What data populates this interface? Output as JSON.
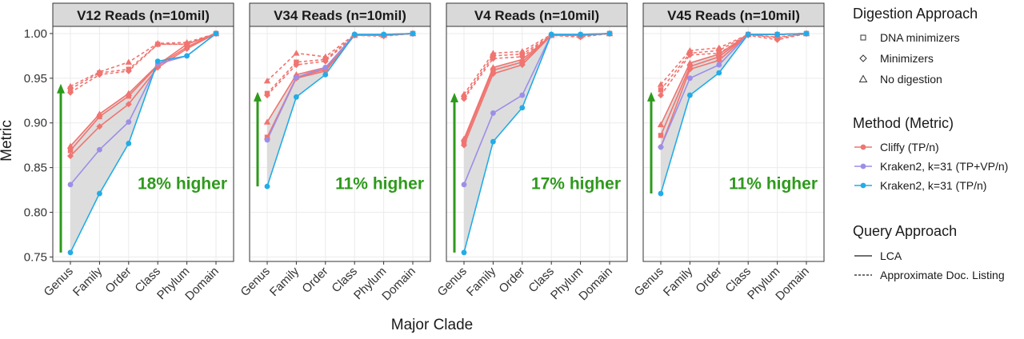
{
  "chart_data": {
    "type": "line",
    "ylabel": "Metric",
    "xlabel": "Major Clade",
    "categories": [
      "Genus",
      "Family",
      "Order",
      "Class",
      "Phylum",
      "Domain"
    ],
    "ylim": [
      0.745,
      1.008
    ],
    "yticks": [
      0.75,
      0.8,
      0.85,
      0.9,
      0.95,
      1.0
    ],
    "ytick_labels": [
      "0.75",
      "0.80",
      "0.85",
      "0.90",
      "0.95",
      "1.00"
    ],
    "colors": {
      "cliffy": "#f07470",
      "kraken_tpvp": "#9c8ee8",
      "kraken_tp": "#22ace8",
      "arrow": "#2e9a1c",
      "shade": "#d9d9d9",
      "panel_border": "#333333",
      "strip_bg": "#d9d9d9",
      "grid": "#ebebeb"
    },
    "panels": [
      {
        "title": "V12 Reads (n=10mil)",
        "annotation": "18% higher",
        "arrow": {
          "from": 0.755,
          "to": 0.942
        },
        "series": [
          {
            "method": "cliffy",
            "query": "dashed",
            "shape": "triangle",
            "values": [
              0.941,
              0.957,
              0.968,
              0.989,
              0.99,
              1.0
            ]
          },
          {
            "method": "cliffy",
            "query": "dashed",
            "shape": "diamond",
            "values": [
              0.934,
              0.954,
              0.958,
              0.988,
              0.988,
              1.0
            ]
          },
          {
            "method": "cliffy",
            "query": "dashed",
            "shape": "square",
            "values": [
              0.938,
              0.956,
              0.96,
              0.988,
              0.988,
              1.0
            ]
          },
          {
            "method": "cliffy",
            "query": "solid",
            "shape": "triangle",
            "values": [
              0.874,
              0.91,
              0.933,
              0.965,
              0.988,
              1.0
            ]
          },
          {
            "method": "cliffy",
            "query": "solid",
            "shape": "square",
            "values": [
              0.869,
              0.907,
              0.93,
              0.964,
              0.985,
              1.0
            ]
          },
          {
            "method": "cliffy",
            "query": "solid",
            "shape": "diamond",
            "values": [
              0.863,
              0.896,
              0.921,
              0.962,
              0.983,
              1.0
            ]
          },
          {
            "method": "kraken_tpvp",
            "query": "solid",
            "shape": "circle",
            "values": [
              0.831,
              0.87,
              0.901,
              0.966,
              0.975,
              1.0
            ]
          },
          {
            "method": "kraken_tp",
            "query": "solid",
            "shape": "circle",
            "values": [
              0.755,
              0.821,
              0.877,
              0.969,
              0.975,
              1.0
            ]
          }
        ]
      },
      {
        "title": "V34 Reads (n=10mil)",
        "annotation": "11% higher",
        "arrow": {
          "from": 0.829,
          "to": 0.933
        },
        "series": [
          {
            "method": "cliffy",
            "query": "dashed",
            "shape": "triangle",
            "values": [
              0.947,
              0.978,
              0.974,
              0.999,
              0.998,
              1.0
            ]
          },
          {
            "method": "cliffy",
            "query": "dashed",
            "shape": "diamond",
            "values": [
              0.931,
              0.965,
              0.969,
              0.998,
              0.997,
              1.0
            ]
          },
          {
            "method": "cliffy",
            "query": "dashed",
            "shape": "square",
            "values": [
              0.933,
              0.968,
              0.971,
              0.998,
              0.998,
              1.0
            ]
          },
          {
            "method": "cliffy",
            "query": "solid",
            "shape": "triangle",
            "values": [
              0.901,
              0.954,
              0.962,
              0.998,
              0.998,
              1.0
            ]
          },
          {
            "method": "cliffy",
            "query": "solid",
            "shape": "square",
            "values": [
              0.884,
              0.951,
              0.96,
              0.998,
              0.998,
              1.0
            ]
          },
          {
            "method": "cliffy",
            "query": "solid",
            "shape": "diamond",
            "values": [
              0.882,
              0.95,
              0.958,
              0.998,
              0.998,
              1.0
            ]
          },
          {
            "method": "kraken_tpvp",
            "query": "solid",
            "shape": "circle",
            "values": [
              0.881,
              0.951,
              0.962,
              0.999,
              0.999,
              1.0
            ]
          },
          {
            "method": "kraken_tp",
            "query": "solid",
            "shape": "circle",
            "values": [
              0.829,
              0.929,
              0.954,
              0.999,
              0.999,
              1.0
            ]
          }
        ]
      },
      {
        "title": "V4 Reads (n=10mil)",
        "annotation": "17% higher",
        "arrow": {
          "from": 0.755,
          "to": 0.932
        },
        "series": [
          {
            "method": "cliffy",
            "query": "dashed",
            "shape": "triangle",
            "values": [
              0.932,
              0.978,
              0.98,
              0.999,
              0.998,
              1.0
            ]
          },
          {
            "method": "cliffy",
            "query": "dashed",
            "shape": "diamond",
            "values": [
              0.927,
              0.972,
              0.974,
              0.998,
              0.996,
              1.0
            ]
          },
          {
            "method": "cliffy",
            "query": "dashed",
            "shape": "square",
            "values": [
              0.929,
              0.975,
              0.977,
              0.998,
              0.997,
              1.0
            ]
          },
          {
            "method": "cliffy",
            "query": "solid",
            "shape": "triangle",
            "values": [
              0.882,
              0.962,
              0.971,
              0.998,
              0.998,
              1.0
            ]
          },
          {
            "method": "cliffy",
            "query": "solid",
            "shape": "square",
            "values": [
              0.879,
              0.959,
              0.968,
              0.998,
              0.998,
              1.0
            ]
          },
          {
            "method": "cliffy",
            "query": "solid",
            "shape": "diamond",
            "values": [
              0.875,
              0.955,
              0.965,
              0.998,
              0.998,
              1.0
            ]
          },
          {
            "method": "kraken_tpvp",
            "query": "solid",
            "shape": "circle",
            "values": [
              0.831,
              0.911,
              0.931,
              0.999,
              0.999,
              1.0
            ]
          },
          {
            "method": "kraken_tp",
            "query": "solid",
            "shape": "circle",
            "values": [
              0.755,
              0.879,
              0.917,
              0.999,
              0.999,
              1.0
            ]
          }
        ]
      },
      {
        "title": "V45 Reads (n=10mil)",
        "annotation": "11% higher",
        "arrow": {
          "from": 0.821,
          "to": 0.933
        },
        "series": [
          {
            "method": "cliffy",
            "query": "dashed",
            "shape": "triangle",
            "values": [
              0.943,
              0.981,
              0.984,
              0.999,
              0.996,
              1.0
            ]
          },
          {
            "method": "cliffy",
            "query": "dashed",
            "shape": "diamond",
            "values": [
              0.931,
              0.976,
              0.978,
              0.998,
              0.993,
              1.0
            ]
          },
          {
            "method": "cliffy",
            "query": "dashed",
            "shape": "square",
            "values": [
              0.937,
              0.978,
              0.981,
              0.999,
              0.995,
              1.0
            ]
          },
          {
            "method": "cliffy",
            "query": "solid",
            "shape": "triangle",
            "values": [
              0.898,
              0.967,
              0.977,
              0.999,
              0.999,
              1.0
            ]
          },
          {
            "method": "cliffy",
            "query": "solid",
            "shape": "square",
            "values": [
              0.886,
              0.963,
              0.974,
              0.999,
              0.999,
              1.0
            ]
          },
          {
            "method": "cliffy",
            "query": "solid",
            "shape": "diamond",
            "values": [
              0.873,
              0.96,
              0.97,
              0.999,
              0.999,
              1.0
            ]
          },
          {
            "method": "kraken_tpvp",
            "query": "solid",
            "shape": "circle",
            "values": [
              0.873,
              0.95,
              0.965,
              0.999,
              0.999,
              1.0
            ]
          },
          {
            "method": "kraken_tp",
            "query": "solid",
            "shape": "circle",
            "values": [
              0.821,
              0.931,
              0.956,
              0.999,
              0.999,
              1.0
            ]
          }
        ]
      }
    ],
    "legend": {
      "placement": "right",
      "digestion": {
        "title": "Digestion Approach",
        "items": [
          {
            "label": "DNA minimizers",
            "shape": "square"
          },
          {
            "label": "Minimizers",
            "shape": "diamond"
          },
          {
            "label": "No digestion",
            "shape": "triangle"
          }
        ]
      },
      "method": {
        "title": "Method (Metric)",
        "items": [
          {
            "label": "Cliffy (TP/n)",
            "key": "cliffy"
          },
          {
            "label": "Kraken2, k=31 (TP+VP/n)",
            "key": "kraken_tpvp"
          },
          {
            "label": "Kraken2, k=31 (TP/n)",
            "key": "kraken_tp"
          }
        ]
      },
      "query": {
        "title": "Query Approach",
        "items": [
          {
            "label": "LCA",
            "style": "solid"
          },
          {
            "label": "Approximate Doc. Listing",
            "style": "dashed"
          }
        ]
      }
    }
  }
}
